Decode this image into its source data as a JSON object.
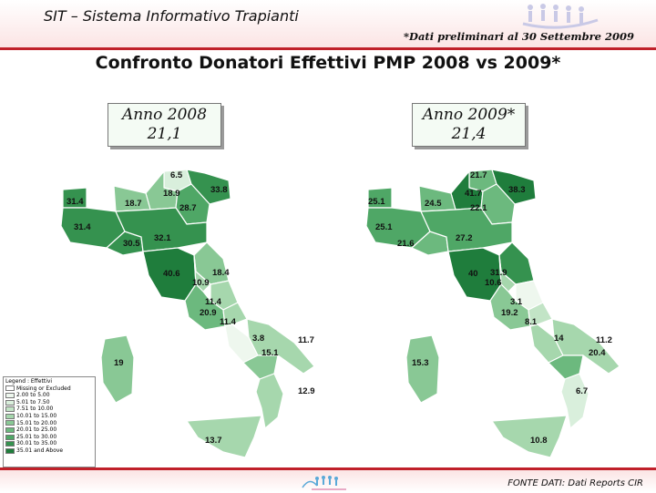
{
  "header": {
    "title": "SIT – Sistema Informativo Trapianti",
    "note": "*Dati preliminari al 30 Settembre 2009"
  },
  "main_title": "Confronto Donatori Effettivi PMP 2008 vs 2009*",
  "boxes": {
    "y2008": {
      "label": "Anno 2008",
      "value": "21,1"
    },
    "y2009": {
      "label": "Anno 2009*",
      "value": "21,4"
    }
  },
  "colors": {
    "missing": "#ffffff",
    "c1": "#eef7ee",
    "c2": "#d9efdc",
    "c3": "#c2e4c6",
    "c4": "#a6d7ad",
    "c5": "#89c895",
    "c6": "#6cb97e",
    "c7": "#4fa766",
    "c8": "#35924f",
    "c9": "#1f7d3c",
    "header_line": "#c0202a"
  },
  "legend": {
    "title": "Legend : Effettivi",
    "items": [
      {
        "label": "Missing or Excluded",
        "color": "missing"
      },
      {
        "label": "2.00 to 5.00",
        "color": "c1"
      },
      {
        "label": "5.01 to 7.50",
        "color": "c2"
      },
      {
        "label": "7.51 to 10.00",
        "color": "c3"
      },
      {
        "label": "10.01 to 15.00",
        "color": "c4"
      },
      {
        "label": "15.01 to 20.00",
        "color": "c5"
      },
      {
        "label": "20.01 to 25.00",
        "color": "c6"
      },
      {
        "label": "25.01 to 30.00",
        "color": "c7"
      },
      {
        "label": "30.01 to 35.00",
        "color": "c8"
      },
      {
        "label": "35.01 and Above",
        "color": "c9"
      }
    ]
  },
  "map2008": {
    "values": [
      "6.5",
      "18.9",
      "33.8",
      "31.4",
      "18.7",
      "28.7",
      "31.4",
      "30.5",
      "32.1",
      "40.6",
      "18.4",
      "10.9",
      "11.4",
      "20.9",
      "11.4",
      "3.8",
      "11.7",
      "15.1",
      "19",
      "12.9",
      "13.7"
    ],
    "regions": [
      "c2",
      "c5",
      "c8",
      "c8",
      "c5",
      "c7",
      "c8",
      "c8",
      "c8",
      "c9",
      "c5",
      "c4",
      "c4",
      "c6",
      "c4",
      "c1",
      "c4",
      "c5",
      "c5",
      "c4",
      "c4"
    ]
  },
  "map2009": {
    "values": [
      "21.7",
      "41.7",
      "38.3",
      "25.1",
      "24.5",
      "22.1",
      "25.1",
      "21.6",
      "27.2",
      "40",
      "31.9",
      "10.6",
      "3.1",
      "19.2",
      "8.1",
      "14",
      "11.2",
      "20.4",
      "15.3",
      "6.7",
      "10.8"
    ],
    "regions": [
      "c6",
      "c9",
      "c9",
      "c7",
      "c6",
      "c6",
      "c7",
      "c6",
      "c7",
      "c9",
      "c8",
      "c4",
      "c1",
      "c5",
      "c3",
      "c4",
      "c4",
      "c6",
      "c5",
      "c2",
      "c4"
    ]
  },
  "footer": {
    "source": "FONTE DATI: Dati Reports CIR"
  }
}
